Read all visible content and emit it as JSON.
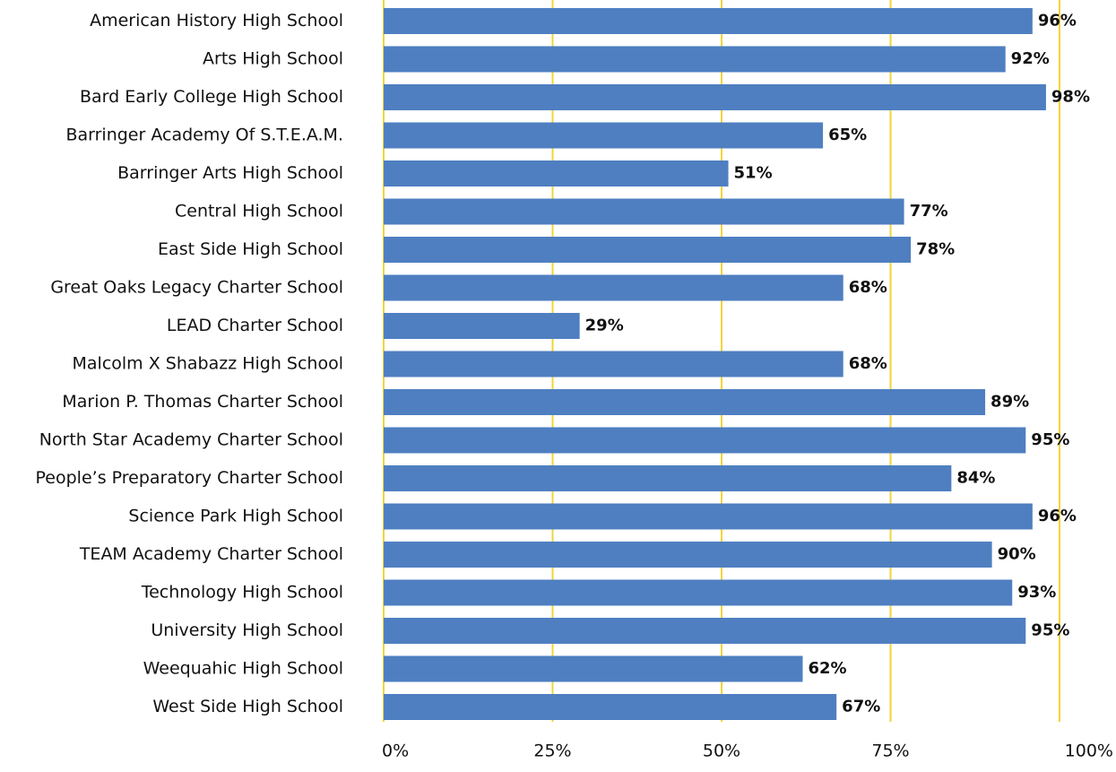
{
  "chart_data": {
    "type": "bar",
    "orientation": "horizontal",
    "categories": [
      "American History High School",
      "Arts High School",
      "Bard Early College High School",
      "Barringer Academy Of S.T.E.A.M.",
      "Barringer Arts High School",
      "Central High School",
      "East Side High School",
      "Great Oaks Legacy Charter School",
      "LEAD Charter School",
      "Malcolm X Shabazz High School",
      "Marion P. Thomas Charter School",
      "North Star Academy Charter School",
      "People’s Preparatory Charter School",
      "Science Park High School",
      "TEAM Academy Charter School",
      "Technology High School",
      "University High School",
      "Weequahic High School",
      "West Side High School"
    ],
    "values": [
      96,
      92,
      98,
      65,
      51,
      77,
      78,
      68,
      29,
      68,
      89,
      95,
      84,
      96,
      90,
      93,
      95,
      62,
      67
    ],
    "value_labels": [
      "96%",
      "92%",
      "98%",
      "65%",
      "51%",
      "77%",
      "78%",
      "68%",
      "29%",
      "68%",
      "89%",
      "95%",
      "84%",
      "96%",
      "90%",
      "93%",
      "95%",
      "62%",
      "67%"
    ],
    "x_ticks": [
      0,
      25,
      50,
      75,
      100
    ],
    "x_tick_labels": [
      "0%",
      "25%",
      "50%",
      "75%",
      "100%"
    ],
    "xlim": [
      0,
      100
    ],
    "title": "",
    "xlabel": "",
    "ylabel": "",
    "grid": true,
    "legend": "none",
    "colors": {
      "bar": "#4f7fc1",
      "gridline": "#f2d43a",
      "text": "#111111"
    }
  }
}
